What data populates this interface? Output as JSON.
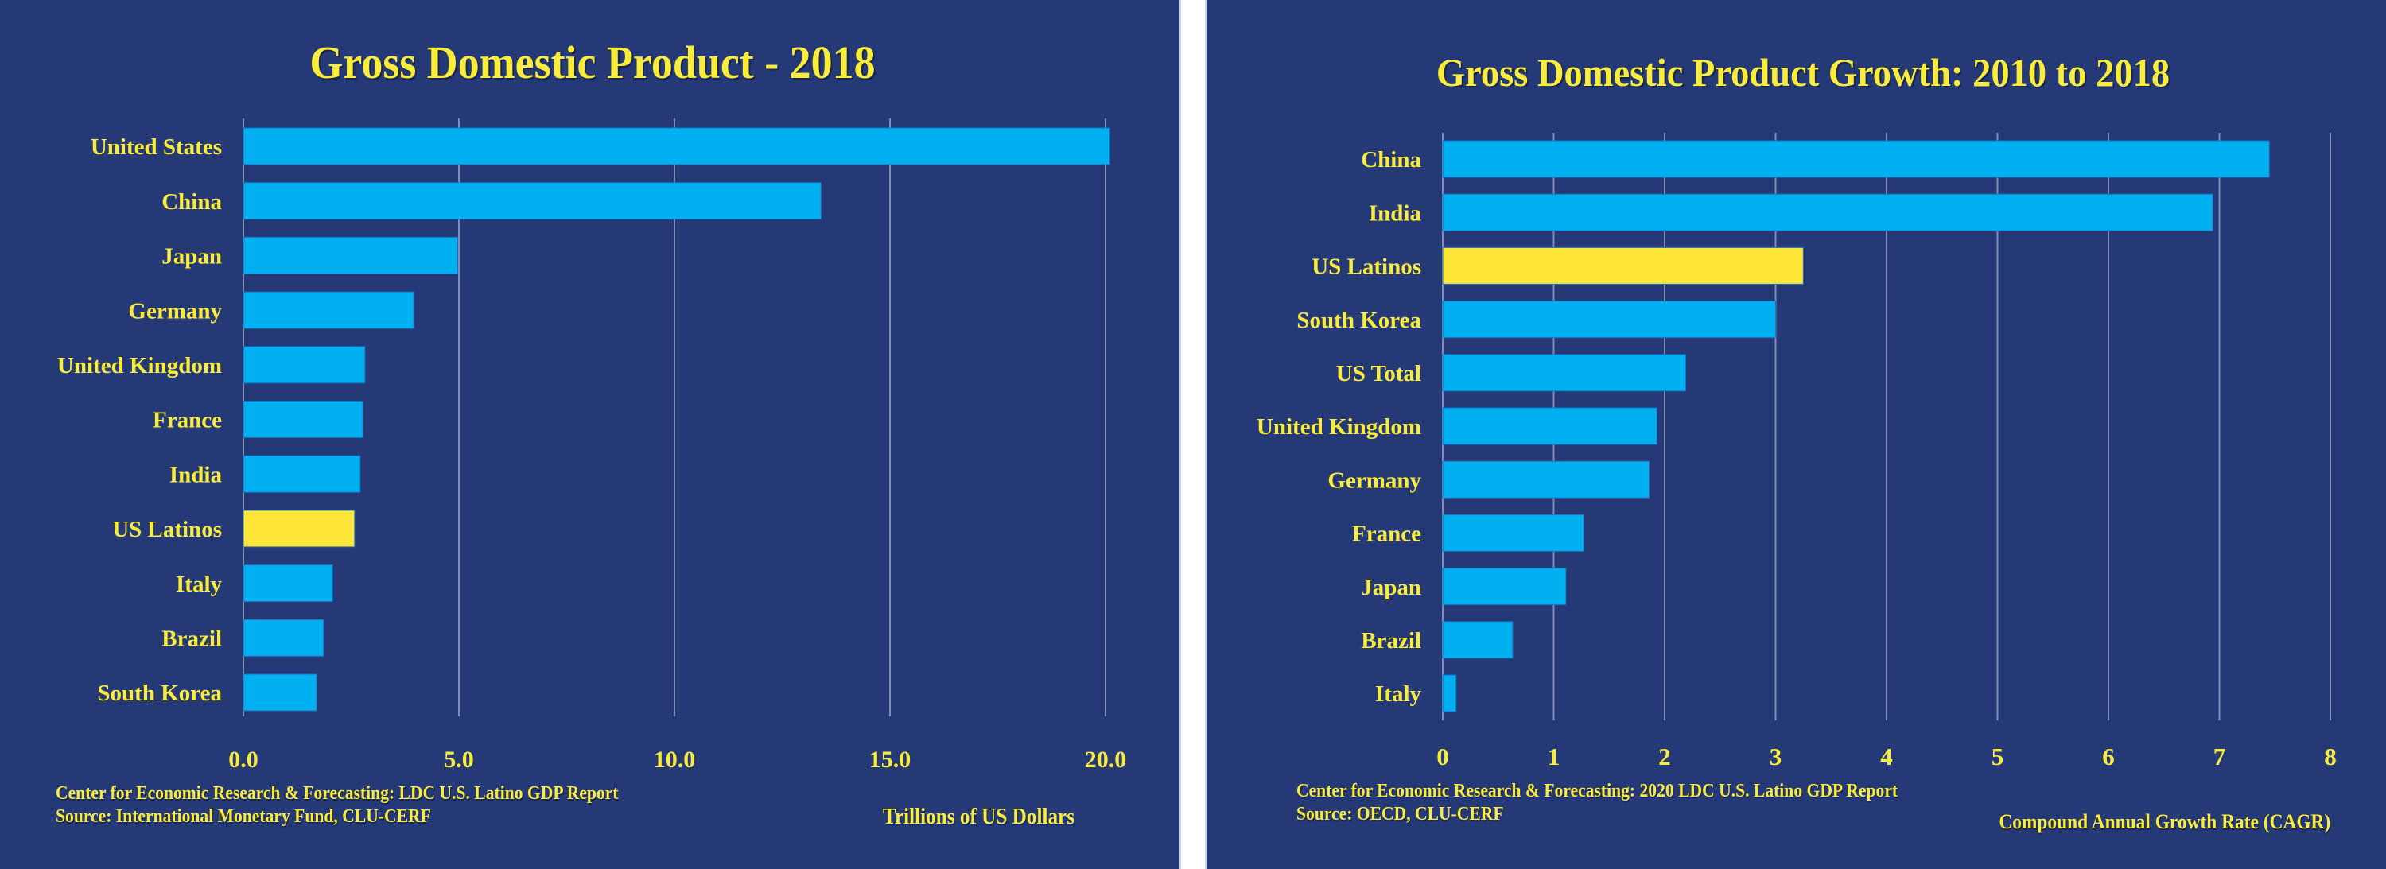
{
  "colors": {
    "background": "#253977",
    "bar": "#00B0F0",
    "highlight_bar": "#FFE73A",
    "text": "#F9EC3A",
    "gridline": "#7F8CB6"
  },
  "chart_data": [
    {
      "type": "bar",
      "orientation": "horizontal",
      "title": "Gross Domestic Product - 2018",
      "categories": [
        "United States",
        "China",
        "Japan",
        "Germany",
        "United Kingdom",
        "France",
        "India",
        "US Latinos",
        "Italy",
        "Brazil",
        "South Korea"
      ],
      "values": [
        20.1,
        13.4,
        4.97,
        3.95,
        2.82,
        2.77,
        2.71,
        2.58,
        2.07,
        1.86,
        1.7
      ],
      "highlight": "US Latinos",
      "xlabel": "Trillions of US Dollars",
      "ylabel": "",
      "xlim": [
        0,
        20
      ],
      "xticks": [
        0,
        5,
        10,
        15,
        20
      ],
      "xtick_labels": [
        "0.0",
        "5.0",
        "10.0",
        "15.0",
        "20.0"
      ],
      "grid": "vertical",
      "legend": "none",
      "footer": [
        "Center for Economic Research & Forecasting: LDC U.S.  Latino GDP Report",
        "Source: International Monetary Fund, CLU-CERF"
      ]
    },
    {
      "type": "bar",
      "orientation": "horizontal",
      "title": "Gross Domestic Product Growth: 2010 to 2018",
      "categories": [
        "China",
        "India",
        "US Latinos",
        "South Korea",
        "US Total",
        "United Kingdom",
        "Germany",
        "France",
        "Japan",
        "Brazil",
        "Italy"
      ],
      "values": [
        7.45,
        6.94,
        3.25,
        3.0,
        2.19,
        1.93,
        1.86,
        1.27,
        1.11,
        0.63,
        0.12
      ],
      "highlight": "US Latinos",
      "xlabel": "Compound Annual Growth Rate (CAGR)",
      "ylabel": "",
      "xlim": [
        0,
        8
      ],
      "xticks": [
        0,
        1,
        2,
        3,
        4,
        5,
        6,
        7,
        8
      ],
      "xtick_labels": [
        "0",
        "1",
        "2",
        "3",
        "4",
        "5",
        "6",
        "7",
        "8"
      ],
      "grid": "vertical",
      "legend": "none",
      "footer": [
        "Center for Economic Research & Forecasting:  2020 LDC U.S.  Latino GDP Report",
        "Source: OECD, CLU-CERF"
      ]
    }
  ]
}
